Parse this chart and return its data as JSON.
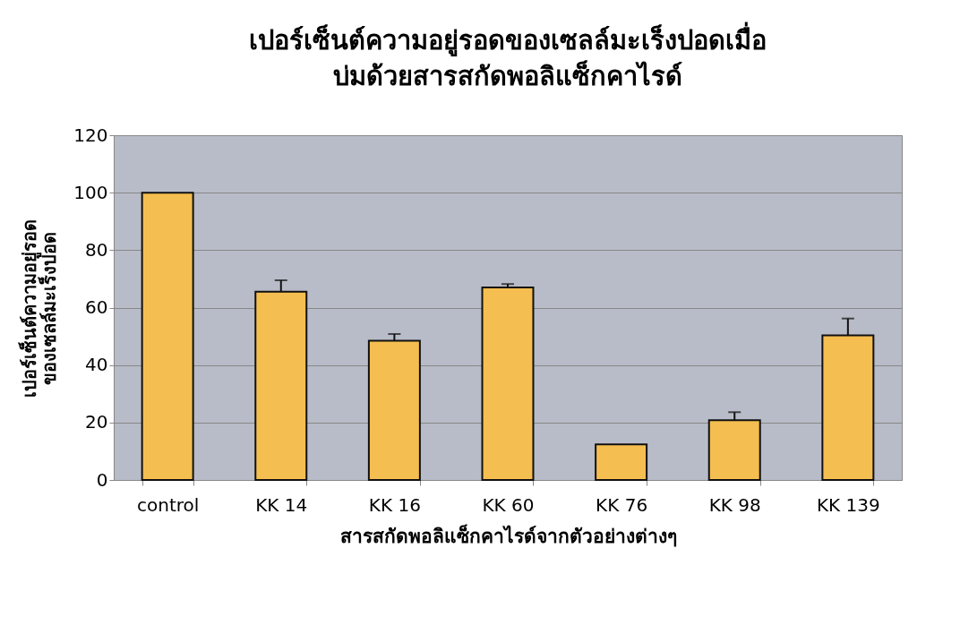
{
  "chart_data": {
    "type": "bar",
    "title": "เปอร์เซ็นต์ความอยู่รอดของเซลล์มะเร็งปอดเมื่อ บ่มด้วยสารสกัดพอลิแซ็กคาไรด์",
    "xlabel": "สารสกัดพอลิแซ็กคาไรด์จากตัวอย่างต่างๆ",
    "ylabel": "เปอร์เซ็นต์ความอยู่รอด ของเซลล์มะเร็งปอด",
    "categories": [
      "control",
      "KK  14",
      "KK  16",
      "KK  60",
      "KK  76",
      "KK  98",
      "KK 139"
    ],
    "values": [
      100,
      65.5,
      48.5,
      67,
      12.4,
      20.8,
      50.3
    ],
    "errors": [
      null,
      [
        65.5,
        69.5
      ],
      [
        48.5,
        50.8
      ],
      [
        67,
        68.2
      ],
      null,
      [
        20.8,
        23.6
      ],
      [
        50.3,
        56.2
      ]
    ],
    "color": "#f5be50",
    "ylim": [
      0,
      120
    ],
    "yticks": [
      0,
      20,
      40,
      60,
      80,
      100,
      120
    ],
    "grid": "y"
  }
}
